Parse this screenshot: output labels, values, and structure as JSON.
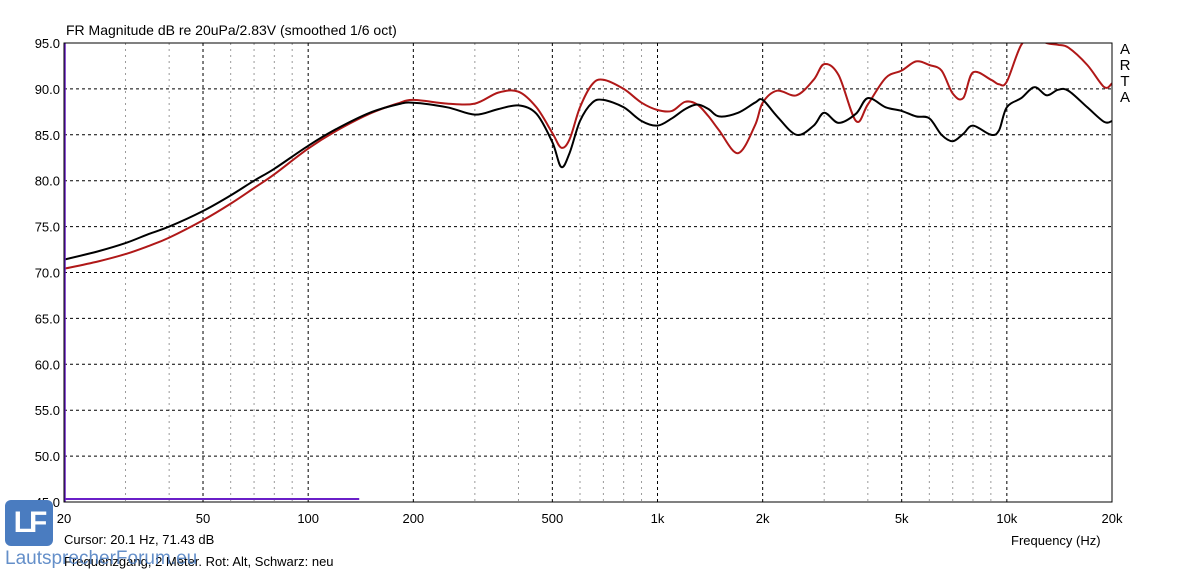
{
  "header": {
    "title": "FR Magnitude dB re 20uPa/2.83V (smoothed 1/6 oct)",
    "arta_letters": [
      "A",
      "R",
      "T",
      "A"
    ]
  },
  "status": {
    "cursor": "Cursor: 20.1 Hz, 71.43 dB",
    "xaxis_label": "Frequency (Hz)",
    "footer": "Frequenzgang, 2 Meter. Rot: Alt,  Schwarz: neu"
  },
  "watermark": {
    "logo": "LF",
    "text": "LautsprecherForum.eu"
  },
  "colors": {
    "background": "#ffffff",
    "grid": "#000000",
    "series_red": "#b01818",
    "series_black": "#000000",
    "cursor_marker": "#6a1fc8"
  },
  "chart_data": {
    "type": "line",
    "title": "FR Magnitude dB re 20uPa/2.83V (smoothed 1/6 oct)",
    "xlabel": "Frequency (Hz)",
    "ylabel": "",
    "xscale": "log",
    "xlim": [
      20,
      20000
    ],
    "ylim": [
      45,
      95
    ],
    "grid": true,
    "x_tick_labels": [
      "20",
      "50",
      "100",
      "200",
      "500",
      "1k",
      "2k",
      "5k",
      "10k",
      "20k"
    ],
    "x_tick_values": [
      20,
      50,
      100,
      200,
      500,
      1000,
      2000,
      5000,
      10000,
      20000
    ],
    "y_tick_labels": [
      "95.0",
      "90.0",
      "85.0",
      "80.0",
      "75.0",
      "70.0",
      "65.0",
      "60.0",
      "55.0",
      "50.0",
      "45.0"
    ],
    "y_tick_values": [
      95,
      90,
      85,
      80,
      75,
      70,
      65,
      60,
      55,
      50,
      45
    ],
    "cursor": {
      "frequency": 20.1,
      "level": 71.43
    },
    "series": [
      {
        "color": "#b01818",
        "x": [
          20,
          25,
          30,
          35,
          40,
          50,
          60,
          70,
          80,
          100,
          120,
          150,
          180,
          200,
          250,
          300,
          350,
          400,
          450,
          500,
          530,
          560,
          600,
          650,
          700,
          800,
          900,
          1000,
          1100,
          1200,
          1300,
          1400,
          1500,
          1700,
          1900,
          2000,
          2200,
          2500,
          2800,
          3000,
          3300,
          3700,
          4000,
          4500,
          5000,
          5500,
          6000,
          6500,
          7000,
          7500,
          8000,
          9000,
          9500,
          10000,
          11000,
          12000,
          13000,
          14000,
          15000,
          17000,
          19000,
          20000
        ],
        "y": [
          70.4,
          71.2,
          72.0,
          72.9,
          73.8,
          75.7,
          77.5,
          79.2,
          80.7,
          83.5,
          85.4,
          87.3,
          88.4,
          88.8,
          88.4,
          88.4,
          89.6,
          89.7,
          88.0,
          85.2,
          83.6,
          84.5,
          88.0,
          90.5,
          91.0,
          90.0,
          88.5,
          87.7,
          87.6,
          88.6,
          88.3,
          87.0,
          85.5,
          83.0,
          86.0,
          88.5,
          89.8,
          89.3,
          91.0,
          92.7,
          91.5,
          86.5,
          88.3,
          91.2,
          92.0,
          93.0,
          92.6,
          92.0,
          89.5,
          89.0,
          91.8,
          91.0,
          90.5,
          90.8,
          94.8,
          95.6,
          95.0,
          94.8,
          94.5,
          92.6,
          90.2,
          90.6
        ]
      },
      {
        "color": "#000000",
        "x": [
          20,
          25,
          30,
          35,
          40,
          50,
          60,
          70,
          80,
          100,
          120,
          150,
          180,
          200,
          250,
          300,
          350,
          400,
          450,
          500,
          530,
          560,
          600,
          650,
          700,
          800,
          900,
          1000,
          1100,
          1200,
          1300,
          1400,
          1500,
          1700,
          1900,
          2000,
          2200,
          2500,
          2800,
          3000,
          3300,
          3700,
          4000,
          4500,
          5000,
          5500,
          6000,
          6500,
          7000,
          7500,
          8000,
          9000,
          9500,
          10000,
          11000,
          12000,
          13000,
          14000,
          15000,
          17000,
          19000,
          20000
        ],
        "y": [
          71.4,
          72.3,
          73.2,
          74.2,
          75.0,
          76.7,
          78.4,
          80.0,
          81.3,
          83.8,
          85.6,
          87.4,
          88.3,
          88.5,
          88.0,
          87.2,
          87.8,
          88.2,
          87.3,
          84.2,
          81.5,
          83.0,
          86.5,
          88.5,
          88.8,
          88.0,
          86.5,
          86.0,
          86.8,
          87.8,
          88.3,
          87.8,
          87.0,
          87.4,
          88.5,
          88.8,
          87.0,
          85.0,
          86.0,
          87.4,
          86.3,
          87.3,
          89.0,
          88.0,
          87.6,
          87.0,
          86.8,
          85.0,
          84.3,
          85.1,
          86.0,
          85.0,
          85.5,
          88.0,
          89.0,
          90.2,
          89.3,
          89.9,
          89.8,
          88.0,
          86.4,
          86.5
        ]
      }
    ]
  }
}
